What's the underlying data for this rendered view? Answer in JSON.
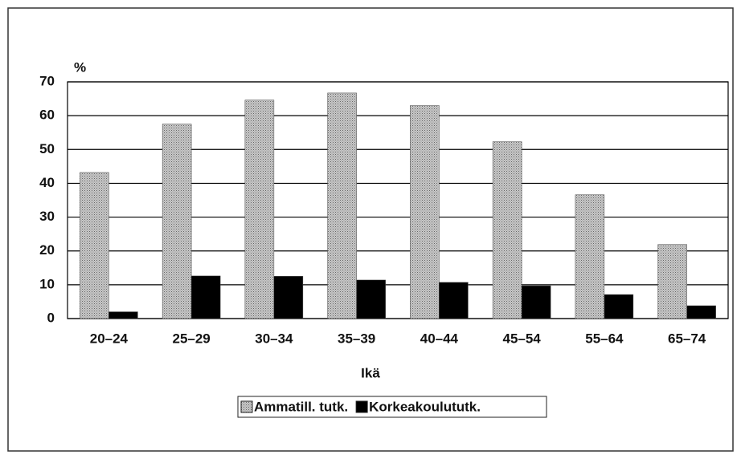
{
  "chart_data": {
    "type": "bar",
    "y_label": "%",
    "x_label": "Ikä",
    "categories": [
      "20–24",
      "25–29",
      "30–34",
      "35–39",
      "40–44",
      "45–54",
      "55–64",
      "65–74"
    ],
    "series": [
      {
        "name": "Ammatill. tutk.",
        "color": "#a9a9a9",
        "values": [
          43.2,
          57.5,
          64.6,
          66.7,
          63,
          52.3,
          36.6,
          21.9
        ]
      },
      {
        "name": "Korkeakoulututk.",
        "color": "#000000",
        "values": [
          2,
          12.6,
          12.5,
          11.4,
          10.7,
          9.7,
          7.1,
          3.8
        ]
      }
    ],
    "ylim": [
      0,
      70
    ],
    "yticks": [
      0,
      10,
      20,
      30,
      40,
      50,
      60,
      70
    ],
    "grid": true
  }
}
